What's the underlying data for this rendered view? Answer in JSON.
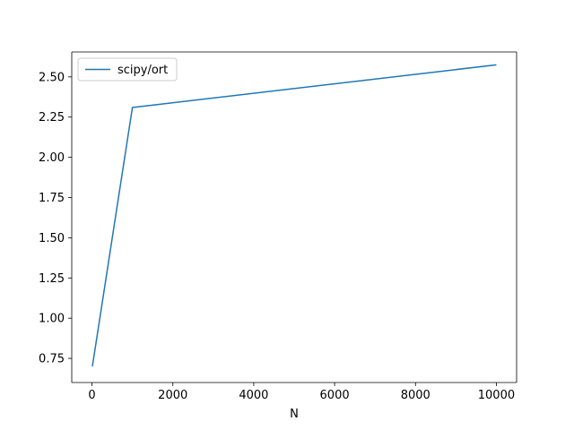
{
  "chart_data": {
    "type": "line",
    "title": "",
    "xlabel": "N",
    "ylabel": "",
    "xlim": [
      -500,
      10500
    ],
    "ylim": [
      0.6,
      2.655
    ],
    "xticks": [
      0,
      2000,
      4000,
      6000,
      8000,
      10000
    ],
    "xtick_labels": [
      "0",
      "2000",
      "4000",
      "6000",
      "8000",
      "10000"
    ],
    "yticks": [
      0.75,
      1.0,
      1.25,
      1.5,
      1.75,
      2.0,
      2.25,
      2.5
    ],
    "ytick_labels": [
      "0.75",
      "1.00",
      "1.25",
      "1.50",
      "1.75",
      "2.00",
      "2.25",
      "2.50"
    ],
    "grid": false,
    "legend_position": "top-left",
    "series": [
      {
        "name": "scipy/ort",
        "color": "#1f77b4",
        "x": [
          10,
          1000,
          10000
        ],
        "y": [
          0.7,
          2.31,
          2.575
        ]
      }
    ]
  }
}
